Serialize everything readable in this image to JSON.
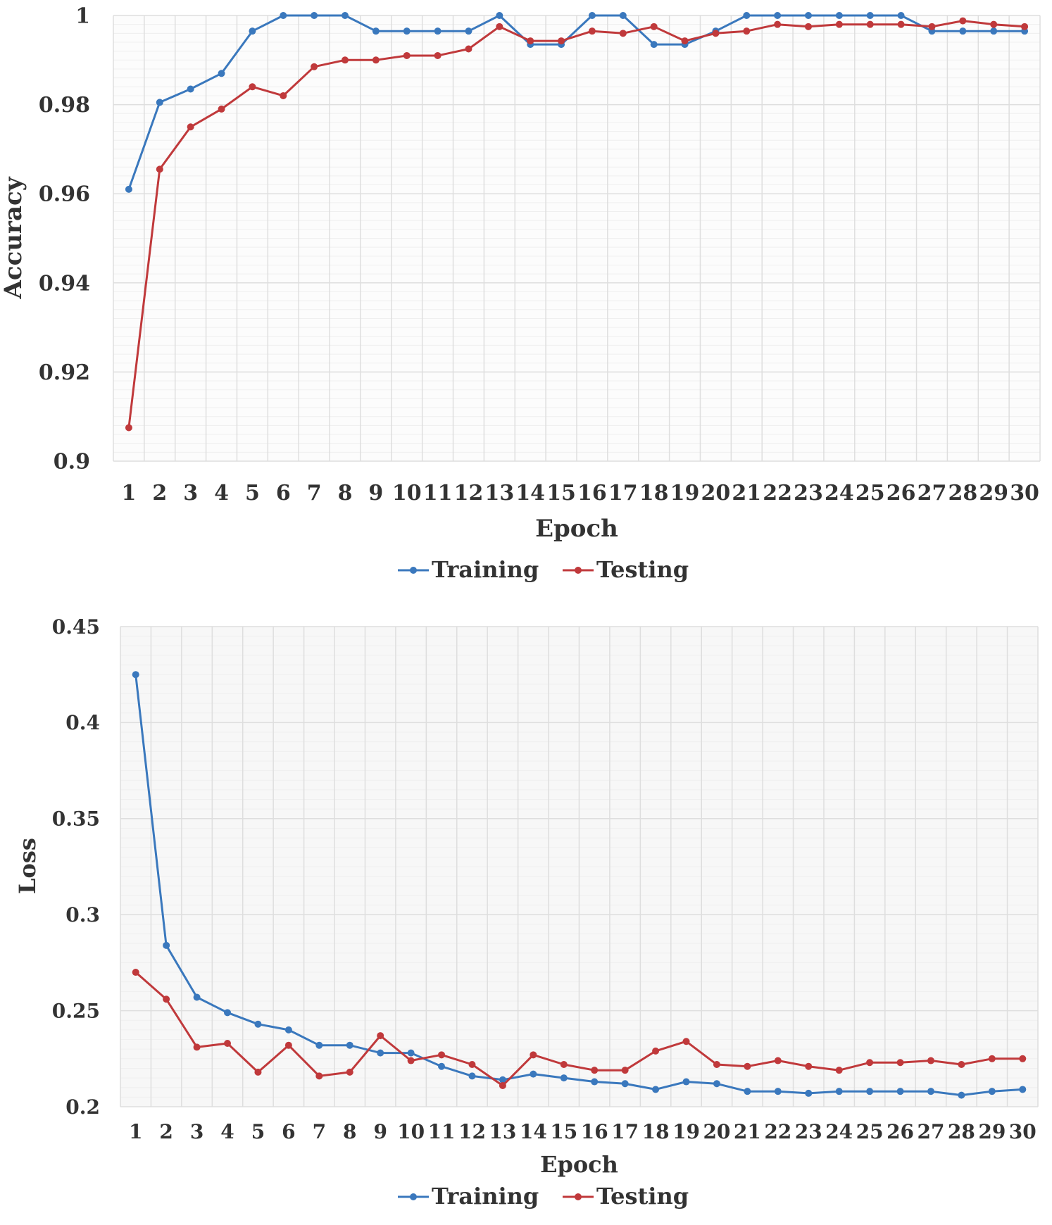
{
  "colors": {
    "training": "#3a78bd",
    "testing": "#c0393b",
    "grid": "#dedede",
    "minor_grid": "#efefef",
    "text": "#333333"
  },
  "chart_data": [
    {
      "type": "line",
      "title": "",
      "xlabel": "Epoch",
      "ylabel": "Accuracy",
      "ylim": [
        0.9,
        1.0
      ],
      "yticks": [
        "0.9",
        "0.92",
        "0.94",
        "0.96",
        "0.98",
        "1"
      ],
      "ytick_values": [
        0.9,
        0.92,
        0.94,
        0.96,
        0.98,
        1.0
      ],
      "categories": [
        "1",
        "2",
        "3",
        "4",
        "5",
        "6",
        "7",
        "8",
        "9",
        "10",
        "11",
        "12",
        "13",
        "14",
        "15",
        "16",
        "17",
        "18",
        "19",
        "20",
        "21",
        "22",
        "23",
        "24",
        "25",
        "26",
        "27",
        "28",
        "29",
        "30"
      ],
      "legend": "bottom-center",
      "series": [
        {
          "name": "Training",
          "color": "#3a78bd",
          "values": [
            0.961,
            0.9805,
            0.9835,
            0.987,
            0.9965,
            1.0,
            1.0,
            1.0,
            0.9965,
            0.9965,
            0.9965,
            0.9965,
            1.0,
            0.9935,
            0.9935,
            1.0,
            1.0,
            0.9935,
            0.9935,
            0.9965,
            1.0,
            1.0,
            1.0,
            1.0,
            1.0,
            1.0,
            0.9965,
            0.9965,
            0.9965,
            0.9965
          ]
        },
        {
          "name": "Testing",
          "color": "#c0393b",
          "values": [
            0.9075,
            0.9655,
            0.975,
            0.979,
            0.984,
            0.982,
            0.9885,
            0.99,
            0.99,
            0.991,
            0.991,
            0.9925,
            0.9975,
            0.9943,
            0.9943,
            0.9965,
            0.996,
            0.9975,
            0.9943,
            0.996,
            0.9965,
            0.998,
            0.9975,
            0.998,
            0.998,
            0.998,
            0.9975,
            0.9988,
            0.998,
            0.9975
          ]
        }
      ]
    },
    {
      "type": "line",
      "title": "",
      "xlabel": "Epoch",
      "ylabel": "Loss",
      "ylim": [
        0.2,
        0.45
      ],
      "yticks": [
        "0.2",
        "0.25",
        "0.3",
        "0.35",
        "0.4",
        "0.45"
      ],
      "ytick_values": [
        0.2,
        0.25,
        0.3,
        0.35,
        0.4,
        0.45
      ],
      "categories": [
        "1",
        "2",
        "3",
        "4",
        "5",
        "6",
        "7",
        "8",
        "9",
        "10",
        "11",
        "12",
        "13",
        "14",
        "15",
        "16",
        "17",
        "18",
        "19",
        "20",
        "21",
        "22",
        "23",
        "24",
        "25",
        "26",
        "27",
        "28",
        "29",
        "30"
      ],
      "legend": "bottom-center",
      "series": [
        {
          "name": "Training",
          "color": "#3a78bd",
          "values": [
            0.425,
            0.284,
            0.257,
            0.249,
            0.243,
            0.24,
            0.232,
            0.232,
            0.228,
            0.228,
            0.221,
            0.216,
            0.214,
            0.217,
            0.215,
            0.213,
            0.212,
            0.209,
            0.213,
            0.212,
            0.208,
            0.208,
            0.207,
            0.208,
            0.208,
            0.208,
            0.208,
            0.206,
            0.208,
            0.209
          ]
        },
        {
          "name": "Testing",
          "color": "#c0393b",
          "values": [
            0.27,
            0.256,
            0.231,
            0.233,
            0.218,
            0.232,
            0.216,
            0.218,
            0.237,
            0.224,
            0.227,
            0.222,
            0.211,
            0.227,
            0.222,
            0.219,
            0.219,
            0.229,
            0.234,
            0.222,
            0.221,
            0.224,
            0.221,
            0.219,
            0.223,
            0.223,
            0.224,
            0.222,
            0.225,
            0.225
          ]
        }
      ]
    }
  ]
}
